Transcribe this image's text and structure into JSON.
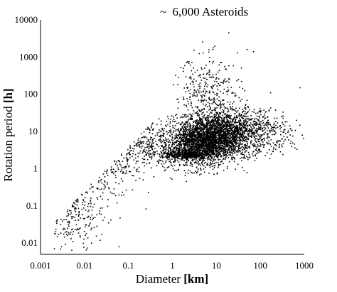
{
  "chart_data": {
    "type": "scatter",
    "title": "~ 6,000 Asteroids",
    "title_prefix": "~",
    "title_text": "6,000 Asteroids",
    "xlabel": {
      "text": "Diameter ",
      "unit": "[km]"
    },
    "ylabel": {
      "text": "Rotation period ",
      "unit": "[h]"
    },
    "x_scale": "log",
    "y_scale": "log",
    "xlim": [
      0.001,
      1000
    ],
    "ylim": [
      0.005,
      10000
    ],
    "x_ticks": [
      {
        "value": 0.001,
        "label": "0.001"
      },
      {
        "value": 0.01,
        "label": "0.01"
      },
      {
        "value": 0.1,
        "label": "0.1"
      },
      {
        "value": 1,
        "label": "1"
      },
      {
        "value": 10,
        "label": "10"
      },
      {
        "value": 100,
        "label": "100"
      },
      {
        "value": 1000,
        "label": "1000"
      }
    ],
    "y_ticks": [
      {
        "value": 0.01,
        "label": "0.01"
      },
      {
        "value": 0.1,
        "label": "0.1"
      },
      {
        "value": 1,
        "label": "1"
      },
      {
        "value": 10,
        "label": "10"
      },
      {
        "value": 100,
        "label": "100"
      },
      {
        "value": 1000,
        "label": "1000"
      },
      {
        "value": 10000,
        "label": "10000"
      }
    ],
    "grid": false,
    "legend": "none",
    "marker_color": "#000000",
    "series": [
      {
        "clusters": [
          {
            "log_diameter": -2.3,
            "log_period": -1.2,
            "sd_log_diameter": 0.4,
            "sd_log_period": 0.45,
            "count": 300
          },
          {
            "log_diameter": -1.5,
            "log_period": 0.2,
            "sd_log_diameter": 0.4,
            "sd_log_period": 0.5,
            "count": 350
          },
          {
            "log_diameter": -0.6,
            "log_period": 0.7,
            "sd_log_diameter": 0.35,
            "sd_log_period": 0.35,
            "count": 300
          },
          {
            "log_diameter": 0.5,
            "log_period": 0.6,
            "sd_log_diameter": 0.4,
            "sd_log_period": 0.3,
            "count": 900
          },
          {
            "log_diameter": 0.8,
            "log_period": 0.8,
            "sd_log_diameter": 0.35,
            "sd_log_period": 0.3,
            "count": 1600
          },
          {
            "log_diameter": 1.4,
            "log_period": 1.0,
            "sd_log_diameter": 0.45,
            "sd_log_period": 0.3,
            "count": 1300
          },
          {
            "log_diameter": 0.8,
            "log_period": 2.0,
            "sd_log_diameter": 0.4,
            "sd_log_period": 0.5,
            "count": 350
          },
          {
            "log_diameter": 0.3,
            "log_period": 0.38,
            "sd_log_diameter": 0.3,
            "sd_log_period": 0.05,
            "count": 400
          },
          {
            "log_diameter": 2.4,
            "log_period": 0.9,
            "sd_log_diameter": 0.3,
            "sd_log_period": 0.3,
            "count": 80
          }
        ]
      }
    ],
    "notable_points": [
      {
        "x": 0.003,
        "y": 0.008
      },
      {
        "x": 0.011,
        "y": 0.0065
      },
      {
        "x": 0.012,
        "y": 3
      },
      {
        "x": 0.008,
        "y": 1.1
      },
      {
        "x": 5,
        "y": 1300
      },
      {
        "x": 30,
        "y": 1300
      },
      {
        "x": 50,
        "y": 1600
      },
      {
        "x": 70,
        "y": 1400
      },
      {
        "x": 800,
        "y": 150
      },
      {
        "x": 900,
        "y": 8
      }
    ]
  }
}
